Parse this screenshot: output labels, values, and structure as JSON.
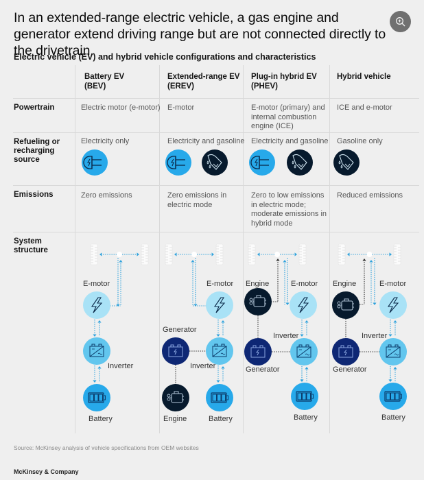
{
  "header": {
    "title": "In an extended-range electric vehicle, a gas engine and generator extend driving range but are not connected directly to the drivetrain.",
    "zoom_button_icon": "zoom-in-icon",
    "subtitle": "Electric vehicle (EV) and hybrid vehicle configurations and characteristics"
  },
  "table": {
    "columns": [
      {
        "line1": "Battery EV",
        "line2": "(BEV)"
      },
      {
        "line1": "Extended-range EV",
        "line2": "(EREV)"
      },
      {
        "line1": "Plug-in hybrid EV",
        "line2": "(PHEV)"
      },
      {
        "line1": "Hybrid vehicle",
        "line2": ""
      }
    ],
    "rows": {
      "powertrain": {
        "label": "Powertrain",
        "values": [
          [
            "Electric motor (e-motor)"
          ],
          [
            "E-motor"
          ],
          [
            "E-motor (primary) and",
            "internal combustion",
            "engine (ICE)"
          ],
          [
            "ICE and e-motor"
          ]
        ]
      },
      "refueling": {
        "label_lines": [
          "Refueling or",
          "recharging",
          "source"
        ],
        "values": [
          {
            "text": "Electricity only",
            "icons": [
              "electric-plug-icon"
            ]
          },
          {
            "text": "Electricity and gasoline",
            "icons": [
              "electric-plug-icon",
              "fuel-nozzle-icon"
            ]
          },
          {
            "text": "Electricity and gasoline",
            "icons": [
              "electric-plug-icon",
              "fuel-nozzle-icon"
            ]
          },
          {
            "text": "Gasoline only",
            "icons": [
              "fuel-nozzle-icon"
            ]
          }
        ]
      },
      "emissions": {
        "label": "Emissions",
        "values": [
          [
            "Zero emissions"
          ],
          [
            "Zero emissions in",
            "electric mode"
          ],
          [
            "Zero to low emissions",
            "in electric mode;",
            "moderate emissions in",
            "hybrid mode"
          ],
          [
            "Reduced emissions"
          ]
        ]
      },
      "system": {
        "label_lines": [
          "System",
          "structure"
        ]
      }
    }
  },
  "diagram_labels": {
    "emotor": "E-motor",
    "inverter": "Inverter",
    "battery": "Battery",
    "generator": "Generator",
    "engine": "Engine"
  },
  "colors": {
    "light_blue": "#a9e2f6",
    "mid_blue": "#62c6ee",
    "bright_blue": "#27a9ea",
    "navy": "#0e2774",
    "dark": "#071a2d",
    "flow_blue": "#2ea2dc",
    "flow_dark": "#333333"
  },
  "footer": {
    "source": "Source: McKinsey analysis of vehicle specifications from OEM websites",
    "brand": "McKinsey & Company"
  }
}
